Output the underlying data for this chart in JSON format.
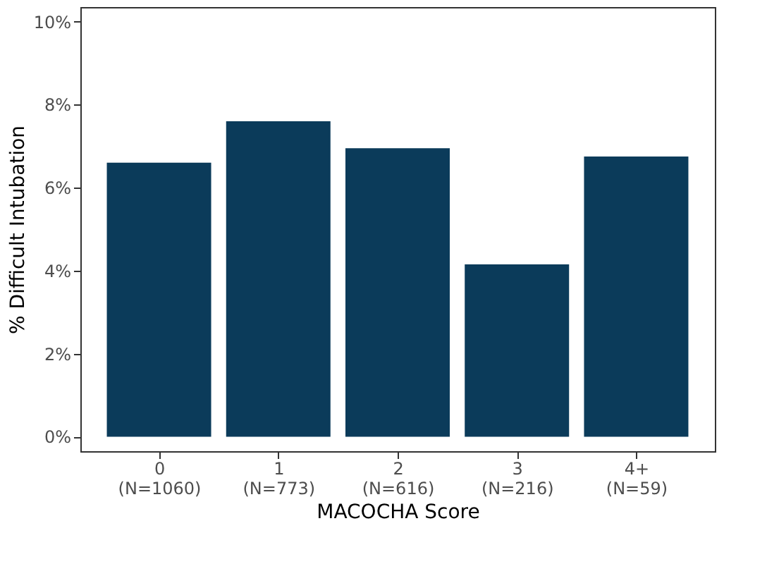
{
  "chart_data": {
    "type": "bar",
    "xlabel": "MACOCHA Score",
    "ylabel": "% Difficult Intubation",
    "categories": [
      "0\n(N=1060)",
      "1\n(N=773)",
      "2\n(N=616)",
      "3\n(N=216)",
      "4+\n(N=59)"
    ],
    "values": [
      6.6,
      7.6,
      6.95,
      4.15,
      6.75
    ],
    "color": "#0b3b5a",
    "ylim": [
      -0.35,
      10.35
    ],
    "yticks": [
      {
        "value": 0,
        "label": "0%"
      },
      {
        "value": 2,
        "label": "2%"
      },
      {
        "value": 4,
        "label": "4%"
      },
      {
        "value": 6,
        "label": "6%"
      },
      {
        "value": 8,
        "label": "8%"
      },
      {
        "value": 10,
        "label": "10%"
      }
    ],
    "grid": false
  }
}
